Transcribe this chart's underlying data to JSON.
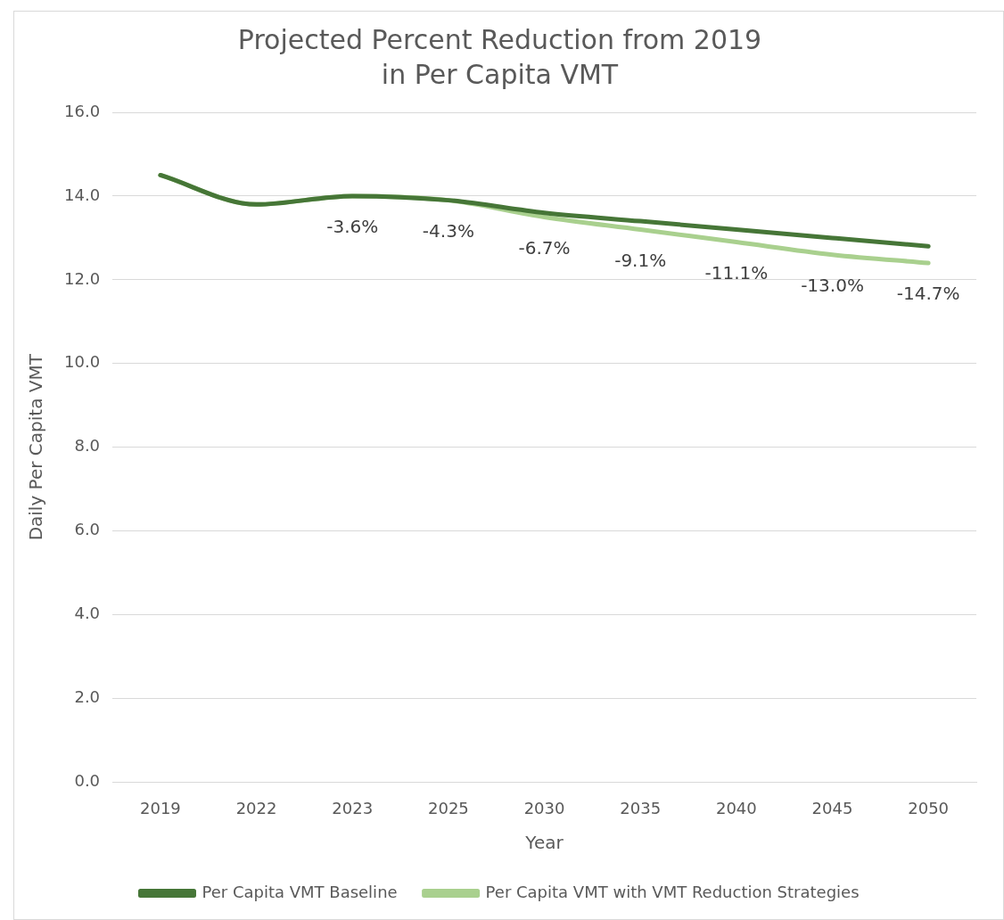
{
  "chart_data": {
    "type": "line",
    "title": "Projected Percent Reduction from 2019\nin Per Capita VMT",
    "xlabel": "Year",
    "ylabel": "Daily Per Capita VMT",
    "categories": [
      "2019",
      "2022",
      "2023",
      "2025",
      "2030",
      "2035",
      "2040",
      "2045",
      "2050"
    ],
    "series": [
      {
        "name": "Per Capita VMT Baseline",
        "color": "#467637",
        "values": [
          14.5,
          13.8,
          14.0,
          13.9,
          13.6,
          13.4,
          13.2,
          13.0,
          12.8
        ]
      },
      {
        "name": "Per Capita VMT with VMT Reduction Strategies",
        "color": "#a9d08e",
        "values": [
          14.5,
          13.8,
          14.0,
          13.9,
          13.5,
          13.2,
          12.9,
          12.6,
          12.4
        ]
      }
    ],
    "annotations": [
      {
        "text": "-3.6%",
        "x": "2023",
        "y": 14.0
      },
      {
        "text": "-4.3%",
        "x": "2025",
        "y": 13.9
      },
      {
        "text": "-6.7%",
        "x": "2030",
        "y": 13.5
      },
      {
        "text": "-9.1%",
        "x": "2035",
        "y": 13.2
      },
      {
        "text": "-11.1%",
        "x": "2040",
        "y": 12.9
      },
      {
        "text": "-13.0%",
        "x": "2045",
        "y": 12.6
      },
      {
        "text": "-14.7%",
        "x": "2050",
        "y": 12.4
      }
    ],
    "ylim": [
      0,
      16
    ],
    "yticks": [
      {
        "value": 0,
        "label": "0.0"
      },
      {
        "value": 2,
        "label": "2.0"
      },
      {
        "value": 4,
        "label": "4.0"
      },
      {
        "value": 6,
        "label": "6.0"
      },
      {
        "value": 8,
        "label": "8.0"
      },
      {
        "value": 10,
        "label": "10.0"
      },
      {
        "value": 12,
        "label": "12.0"
      },
      {
        "value": 14,
        "label": "14.0"
      },
      {
        "value": 16,
        "label": "16.0"
      }
    ],
    "grid": "y",
    "legend": "bottom",
    "marker": "none",
    "line_style": "solid"
  }
}
